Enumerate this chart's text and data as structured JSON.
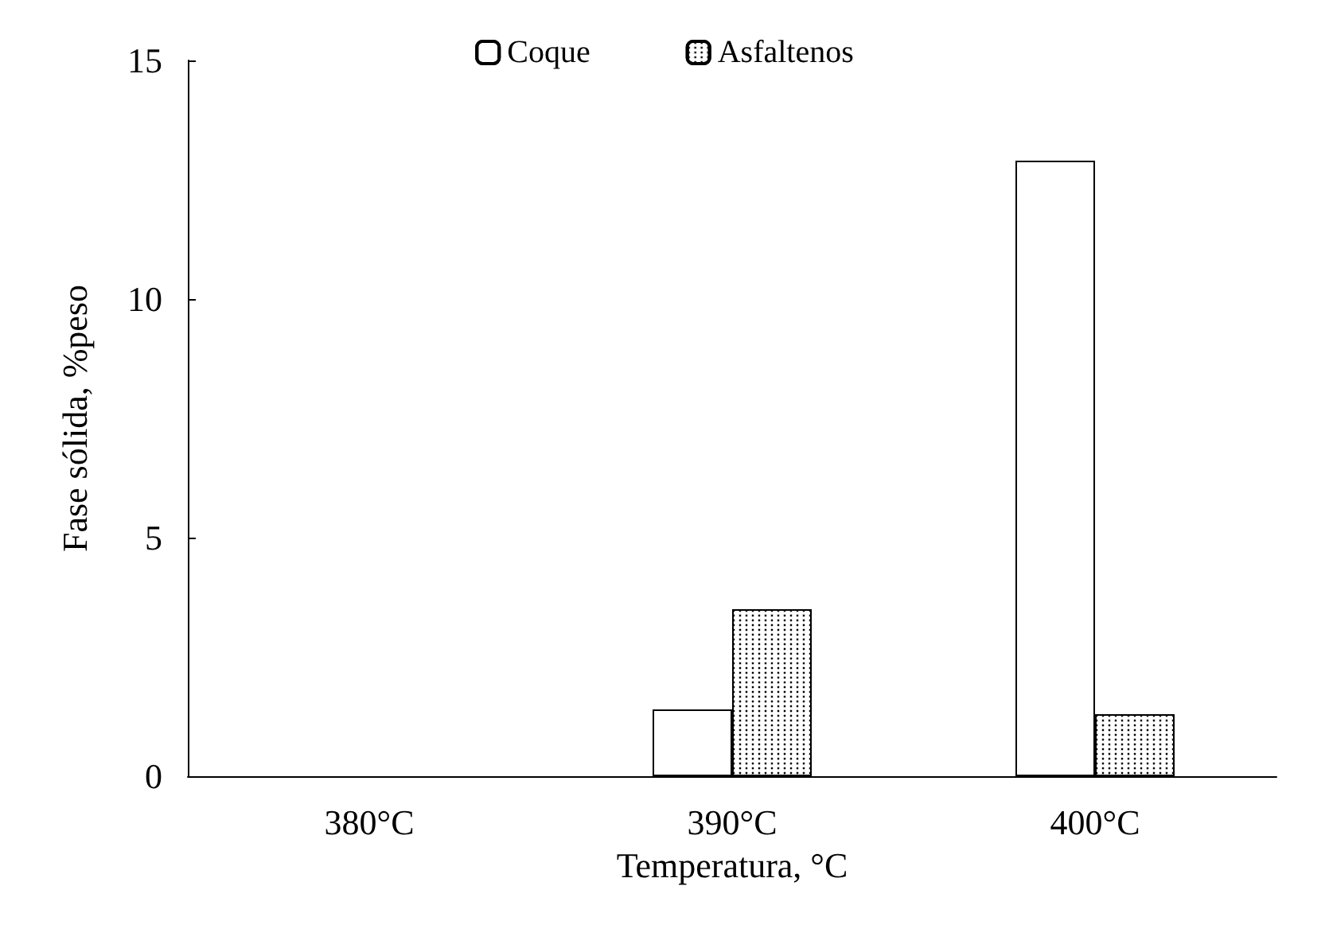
{
  "chart_data": {
    "type": "bar",
    "xlabel": "Temperatura, °C",
    "ylabel": "Fase sólida, %peso",
    "categories": [
      "380°C",
      "390°C",
      "400°C"
    ],
    "series": [
      {
        "name": "Coque",
        "color": "#ffffff",
        "values": [
          null,
          1.4,
          12.9
        ]
      },
      {
        "name": "Asfaltenos",
        "color": "#ffffff",
        "values": [
          null,
          3.5,
          1.3
        ]
      }
    ],
    "ylim": [
      0,
      15
    ],
    "yticks": [
      0,
      5,
      10,
      15
    ],
    "grid": false,
    "legend": "top"
  }
}
